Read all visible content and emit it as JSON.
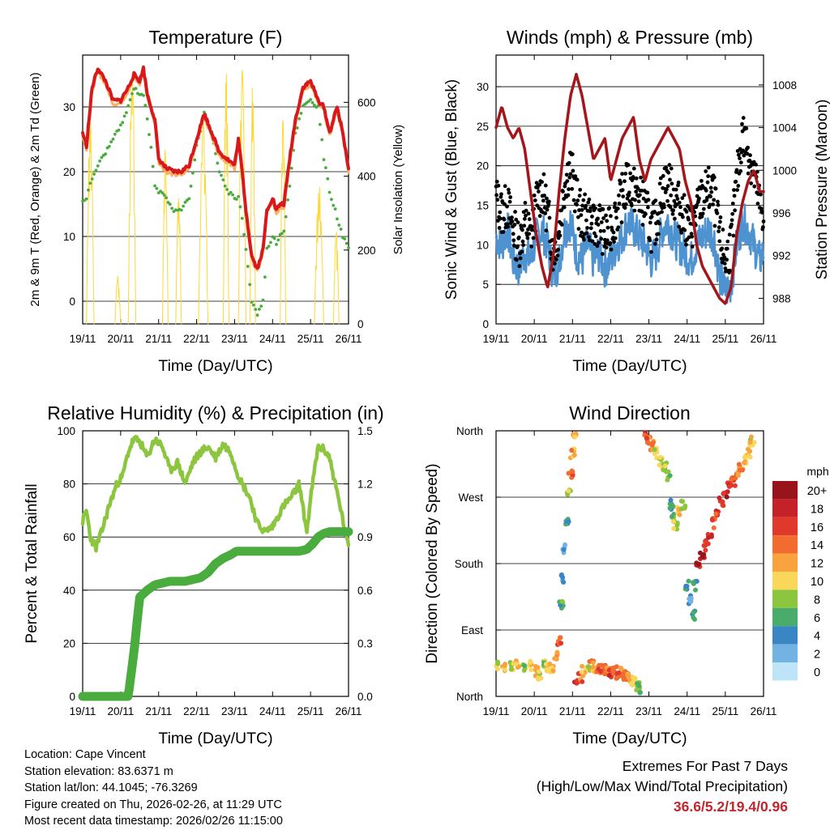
{
  "x_ticks": [
    "19/11",
    "20/11",
    "21/11",
    "22/11",
    "23/11",
    "24/11",
    "25/11",
    "26/11"
  ],
  "chart_data": [
    {
      "type": "line",
      "title": "Temperature (F)",
      "xlabel": "Time (Day/UTC)",
      "ylabel": "2m & 9m T (Red, Orange) & 2m Td (Green)",
      "y2label": "Solar Insolation (Yellow)",
      "ylim": [
        -3.5,
        38
      ],
      "y2lim": [
        0,
        728
      ],
      "yticks": [
        "0",
        "10",
        "20",
        "30"
      ],
      "y2ticks": [
        "0",
        "200",
        "400",
        "600"
      ],
      "x_days": [
        0,
        0.1,
        0.25,
        0.4,
        0.6,
        0.8,
        1,
        1.2,
        1.35,
        1.5,
        1.6,
        1.7,
        1.8,
        1.9,
        2,
        2.2,
        2.4,
        2.6,
        2.8,
        3,
        3.2,
        3.4,
        3.6,
        3.8,
        4,
        4.1,
        4.2,
        4.3,
        4.45,
        4.6,
        4.75,
        4.85,
        5,
        5.1,
        5.2,
        5.3,
        5.45,
        5.6,
        5.8,
        6,
        6.2,
        6.35,
        6.5,
        6.7,
        6.85,
        7
      ],
      "series": [
        {
          "name": "2m T",
          "color": "#d7191c",
          "values": [
            26,
            24,
            33,
            36,
            34,
            31,
            31,
            33,
            35,
            34,
            36,
            32,
            30,
            28,
            22,
            20.5,
            20,
            20,
            21,
            25,
            29,
            26,
            23,
            22,
            21,
            25,
            20,
            14,
            7,
            5,
            8,
            14,
            16,
            14,
            15,
            15,
            22,
            28,
            33,
            34,
            31,
            30,
            26,
            30,
            26,
            20.5
          ]
        },
        {
          "name": "9m T",
          "color": "#fdae61",
          "values": [
            25.5,
            23.5,
            32.5,
            35.5,
            33.5,
            30.5,
            30.5,
            32.5,
            34.5,
            33.5,
            35.5,
            31.5,
            29.5,
            27.5,
            21.5,
            20,
            19.5,
            19.5,
            20.5,
            24.5,
            28.5,
            25.5,
            22.5,
            21.5,
            20.5,
            24.5,
            19.5,
            13.5,
            6.5,
            4.5,
            7.5,
            13.5,
            15.5,
            13.5,
            14.5,
            14.5,
            21.5,
            27.5,
            32.5,
            33.5,
            30.5,
            29.5,
            25.5,
            29.5,
            25.5,
            20
          ]
        },
        {
          "name": "2m Td",
          "color": "#4aac3f",
          "values": [
            15.5,
            16,
            19,
            21,
            23,
            25,
            27,
            30,
            33,
            32,
            32,
            28,
            24,
            18,
            17,
            16,
            14,
            14,
            16,
            24,
            29,
            26,
            20,
            17,
            16,
            16,
            13,
            8,
            0,
            -2,
            0,
            8,
            10,
            9,
            10,
            11,
            18,
            26,
            30,
            31,
            30,
            22,
            17,
            13,
            10,
            8
          ]
        },
        {
          "name": "Solar Insolation",
          "color": "#fdd835",
          "axis": "y2",
          "peaks": [
            [
              0.1,
              0.3,
              580
            ],
            [
              0.85,
              1.0,
              130
            ],
            [
              1.2,
              1.4,
              720
            ],
            [
              2.1,
              2.25,
              480
            ],
            [
              2.45,
              2.6,
              350
            ],
            [
              3.05,
              3.3,
              560
            ],
            [
              3.7,
              3.85,
              720
            ],
            [
              4.1,
              4.3,
              720
            ],
            [
              4.4,
              4.55,
              660
            ],
            [
              5.2,
              5.35,
              580
            ],
            [
              6.1,
              6.35,
              380
            ],
            [
              6.6,
              6.75,
              260
            ]
          ]
        }
      ]
    },
    {
      "type": "scatter",
      "title": "Winds (mph) & Pressure (mb)",
      "xlabel": "Time (Day/UTC)",
      "ylabel": "Sonic Wind & Gust (Blue, Black)",
      "y2label": "Station Pressure (Maroon)",
      "ylim": [
        0,
        34
      ],
      "y2lim": [
        985.6,
        1010.8
      ],
      "yticks": [
        "0",
        "5",
        "10",
        "15",
        "20",
        "25",
        "30"
      ],
      "y2ticks": [
        "988",
        "992",
        "996",
        "1000",
        "1004",
        "1008"
      ],
      "x_days": [
        0,
        0.15,
        0.3,
        0.45,
        0.6,
        0.75,
        0.9,
        1.05,
        1.2,
        1.35,
        1.5,
        1.65,
        1.8,
        1.95,
        2.1,
        2.25,
        2.4,
        2.55,
        2.7,
        2.85,
        3,
        3.15,
        3.3,
        3.45,
        3.6,
        3.75,
        3.9,
        4.05,
        4.2,
        4.35,
        4.5,
        4.65,
        4.8,
        4.95,
        5.1,
        5.25,
        5.4,
        5.55,
        5.7,
        5.85,
        6,
        6.15,
        6.3,
        6.45,
        6.6,
        6.75,
        6.9,
        7
      ],
      "series": [
        {
          "name": "Sonic Wind",
          "color": "#4e92d0",
          "values": [
            11,
            10,
            12,
            8,
            7,
            9,
            8,
            11,
            12,
            10,
            6,
            8,
            12,
            13,
            9,
            8,
            10,
            8,
            9,
            7,
            8,
            10,
            11,
            13,
            12,
            11,
            10,
            8,
            9,
            12,
            13,
            11,
            10,
            9,
            8,
            10,
            11,
            12,
            11,
            6,
            4,
            5,
            10,
            13,
            12,
            10,
            8,
            9
          ]
        },
        {
          "name": "Gust",
          "color": "#000000",
          "values": [
            16,
            14,
            15,
            12,
            10,
            13,
            11,
            15,
            17,
            14,
            9,
            12,
            18,
            20,
            16,
            13,
            14,
            12,
            13,
            11,
            12,
            14,
            16,
            18,
            17,
            16,
            15,
            12,
            13,
            17,
            18,
            16,
            15,
            13,
            12,
            14,
            16,
            17,
            16,
            11,
            8,
            10,
            18,
            24,
            22,
            19,
            15,
            14
          ]
        },
        {
          "name": "Station Pressure",
          "color": "#a3161b",
          "axis": "y2",
          "values": [
            1004,
            1006,
            1004,
            1003,
            1004,
            1002,
            998,
            994,
            991,
            989,
            992,
            998,
            1003,
            1007,
            1009,
            1007,
            1004,
            1001,
            1002,
            1003,
            999,
            1001,
            1003,
            1004,
            1005,
            1001,
            999,
            1001,
            1002,
            1003,
            1004,
            1003,
            1002,
            999,
            997,
            993,
            991,
            990,
            989,
            988,
            987.5,
            989,
            994,
            997,
            999,
            1000,
            998,
            998
          ]
        }
      ]
    },
    {
      "type": "line",
      "title": "Relative Humidity (%) & Precipitation (in)",
      "xlabel": "Time (Day/UTC)",
      "ylabel": "Percent & Total Rainfall",
      "ylim": [
        0,
        100
      ],
      "y2lim": [
        0,
        1.5
      ],
      "yticks": [
        "0",
        "20",
        "40",
        "60",
        "80",
        "100"
      ],
      "y2ticks": [
        "0.0",
        "0.3",
        "0.6",
        "0.9",
        "1.2",
        "1.5"
      ],
      "x_days": [
        0,
        0.1,
        0.2,
        0.35,
        0.5,
        0.7,
        0.9,
        1.05,
        1.2,
        1.35,
        1.5,
        1.7,
        1.9,
        2.1,
        2.3,
        2.5,
        2.7,
        2.9,
        3.1,
        3.3,
        3.5,
        3.7,
        3.9,
        4.05,
        4.2,
        4.4,
        4.6,
        4.8,
        5,
        5.15,
        5.3,
        5.5,
        5.7,
        5.9,
        6.05,
        6.2,
        6.35,
        6.5,
        6.65,
        6.8,
        7
      ],
      "series": [
        {
          "name": "Relative Humidity",
          "color": "#8cc63f",
          "values": [
            66,
            70,
            60,
            56,
            62,
            72,
            80,
            83,
            92,
            97,
            96,
            90,
            97,
            94,
            85,
            88,
            80,
            88,
            92,
            94,
            90,
            95,
            92,
            85,
            80,
            75,
            65,
            62,
            64,
            68,
            72,
            75,
            80,
            62,
            80,
            94,
            93,
            90,
            80,
            70,
            56
          ]
        },
        {
          "name": "Total Precipitation",
          "color": "#4aac3f",
          "axis": "y2",
          "values": [
            0,
            0,
            0,
            0,
            0,
            0,
            0,
            0,
            0,
            0.25,
            0.56,
            0.6,
            0.63,
            0.64,
            0.65,
            0.65,
            0.65,
            0.66,
            0.67,
            0.7,
            0.75,
            0.78,
            0.8,
            0.82,
            0.82,
            0.82,
            0.82,
            0.82,
            0.82,
            0.82,
            0.82,
            0.82,
            0.82,
            0.83,
            0.86,
            0.9,
            0.92,
            0.93,
            0.93,
            0.93,
            0.93
          ]
        }
      ]
    },
    {
      "type": "scatter",
      "title": "Wind Direction",
      "xlabel": "Time (Day/UTC)",
      "ylabel": "Direction (Colored By Speed)",
      "ylim": [
        0,
        360
      ],
      "yticks": [
        "North",
        "East",
        "South",
        "West",
        "North"
      ],
      "series": [
        {
          "name": "Wind direction",
          "color_scale": "speed",
          "points": [
            [
              0,
              40
            ],
            [
              0.2,
              38
            ],
            [
              0.4,
              42
            ],
            [
              0.55,
              45
            ],
            [
              0.7,
              40
            ],
            [
              0.9,
              42
            ],
            [
              1.05,
              35
            ],
            [
              1.15,
              30
            ],
            [
              1.25,
              42
            ],
            [
              1.35,
              38
            ],
            [
              1.45,
              40
            ],
            [
              1.55,
              55
            ],
            [
              1.65,
              75
            ],
            [
              1.7,
              125
            ],
            [
              1.75,
              160
            ],
            [
              1.8,
              200
            ],
            [
              1.85,
              235
            ],
            [
              1.9,
              275
            ],
            [
              1.95,
              300
            ],
            [
              2.0,
              330
            ],
            [
              2.05,
              350
            ],
            [
              2.1,
              20
            ],
            [
              2.2,
              25
            ],
            [
              2.3,
              35
            ],
            [
              2.4,
              38
            ],
            [
              2.5,
              42
            ],
            [
              2.6,
              40
            ],
            [
              2.7,
              38
            ],
            [
              2.8,
              40
            ],
            [
              2.9,
              35
            ],
            [
              3.0,
              32
            ],
            [
              3.1,
              35
            ],
            [
              3.2,
              30
            ],
            [
              3.3,
              32
            ],
            [
              3.4,
              28
            ],
            [
              3.5,
              25
            ],
            [
              3.6,
              20
            ],
            [
              3.7,
              15
            ],
            [
              3.75,
              10
            ],
            [
              3.9,
              355
            ],
            [
              4.0,
              348
            ],
            [
              4.1,
              340
            ],
            [
              4.2,
              330
            ],
            [
              4.3,
              320
            ],
            [
              4.4,
              310
            ],
            [
              4.5,
              300
            ],
            [
              4.6,
              260
            ],
            [
              4.65,
              240
            ],
            [
              4.7,
              230
            ],
            [
              4.8,
              250
            ],
            [
              4.9,
              260
            ],
            [
              5.0,
              150
            ],
            [
              5.1,
              130
            ],
            [
              5.15,
              110
            ],
            [
              5.2,
              150
            ],
            [
              5.3,
              175
            ],
            [
              5.4,
              190
            ],
            [
              5.5,
              205
            ],
            [
              5.6,
              220
            ],
            [
              5.7,
              235
            ],
            [
              5.8,
              250
            ],
            [
              5.9,
              265
            ],
            [
              6.0,
              275
            ],
            [
              6.1,
              285
            ],
            [
              6.2,
              292
            ],
            [
              6.3,
              300
            ],
            [
              6.4,
              310
            ],
            [
              6.5,
              320
            ],
            [
              6.6,
              330
            ],
            [
              6.7,
              345
            ]
          ],
          "speeds": [
            10,
            12,
            9,
            11,
            8,
            10,
            12,
            9,
            8,
            10,
            11,
            12,
            14,
            6,
            4,
            3,
            5,
            8,
            14,
            12,
            11,
            16,
            14,
            12,
            10,
            13,
            12,
            14,
            15,
            13,
            16,
            14,
            15,
            13,
            14,
            12,
            10,
            8,
            6,
            16,
            14,
            13,
            10,
            9,
            8,
            7,
            5,
            6,
            9,
            11,
            8,
            5,
            4,
            5,
            6,
            18,
            20,
            16,
            17,
            15,
            16,
            17,
            18,
            16,
            15,
            14,
            13,
            12,
            11,
            10
          ]
        }
      ],
      "legend": {
        "unit": "mph",
        "labels": [
          "20+",
          "18",
          "16",
          "14",
          "12",
          "10",
          "8",
          "6",
          "4",
          "2",
          "0"
        ],
        "colors": [
          "#99131b",
          "#c42128",
          "#e0392c",
          "#f26b2f",
          "#f9a340",
          "#f9d75b",
          "#8cc63f",
          "#4aac6a",
          "#3a86c5",
          "#72b3e4",
          "#bde4f7"
        ]
      }
    }
  ],
  "info": {
    "location": "Location: Cape Vincent",
    "elevation": "Station elevation: 83.6371 m",
    "latlon": "Station lat/lon: 44.1045; -76.3269",
    "created": "Figure created on Thu, 2026-02-26, at 11:29 UTC",
    "latest": "Most recent data timestamp: 2026/02/26 11:15:00"
  },
  "extremes": {
    "title": "Extremes For Past 7 Days",
    "subtitle": "(High/Low/Max Wind/Total Precipitation)",
    "values": "36.6/5.2/19.4/0.96"
  }
}
